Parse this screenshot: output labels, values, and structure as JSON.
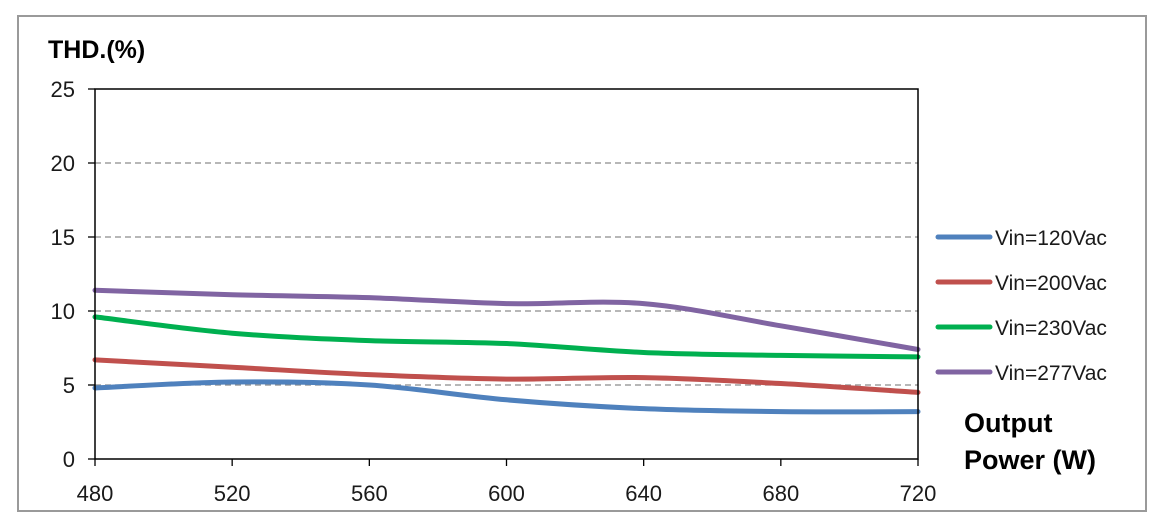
{
  "chart_data": {
    "type": "line",
    "title": "",
    "ylabel": "THD.(%)",
    "xlabel_line1": "Output",
    "xlabel_line2": "Power (W)",
    "xlim": [
      480,
      720
    ],
    "ylim": [
      0,
      25
    ],
    "x_ticks": [
      480,
      520,
      560,
      600,
      640,
      680,
      720
    ],
    "y_ticks": [
      0,
      5,
      10,
      15,
      20,
      25
    ],
    "grid": "horizontal dashed",
    "legend_position": "right",
    "x": [
      480,
      520,
      560,
      600,
      640,
      680,
      720
    ],
    "series": [
      {
        "name": "Vin=120Vac",
        "color": "#4f81bd",
        "values": [
          4.8,
          5.2,
          5.0,
          4.0,
          3.4,
          3.2,
          3.2
        ]
      },
      {
        "name": "Vin=200Vac",
        "color": "#c0504d",
        "values": [
          6.7,
          6.2,
          5.7,
          5.4,
          5.5,
          5.1,
          4.5
        ]
      },
      {
        "name": "Vin=230Vac",
        "color": "#00b050",
        "values": [
          9.6,
          8.5,
          8.0,
          7.8,
          7.2,
          7.0,
          6.9
        ]
      },
      {
        "name": "Vin=277Vac",
        "color": "#8064a2",
        "values": [
          11.4,
          11.1,
          10.9,
          10.5,
          10.5,
          9.0,
          7.4
        ]
      }
    ]
  }
}
